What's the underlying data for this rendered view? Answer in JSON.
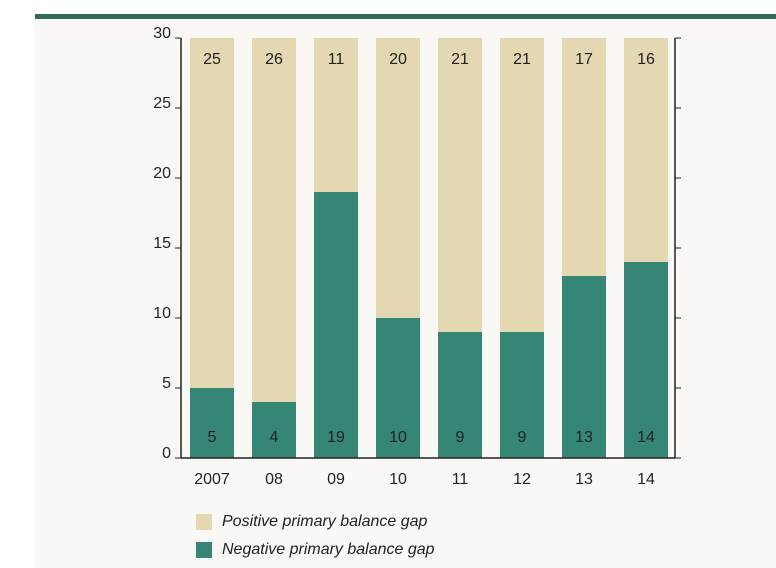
{
  "chart_data": {
    "type": "stacked_bar",
    "categories": [
      "2007",
      "08",
      "09",
      "10",
      "11",
      "12",
      "13",
      "14"
    ],
    "series": [
      {
        "name": "Negative primary balance gap",
        "color": "#358674",
        "values": [
          5,
          4,
          19,
          10,
          9,
          9,
          13,
          14
        ]
      },
      {
        "name": "Positive primary balance gap",
        "color": "#e3d8b2",
        "values": [
          25,
          26,
          11,
          20,
          21,
          21,
          17,
          16
        ]
      }
    ],
    "ylim": [
      0,
      30
    ],
    "yticks": [
      0,
      5,
      10,
      15,
      20,
      25,
      30
    ],
    "legend": "bottom"
  }
}
